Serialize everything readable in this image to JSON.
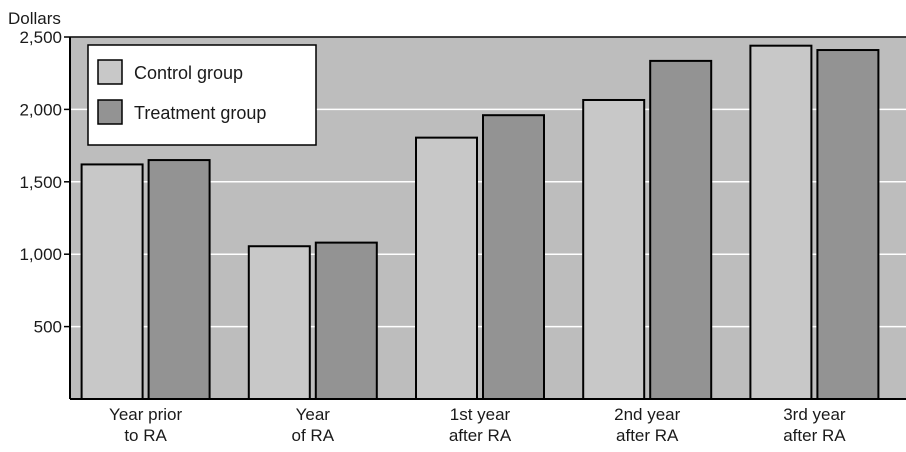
{
  "chart_data": {
    "type": "bar",
    "ylabel": "Dollars",
    "categories": [
      [
        "Year prior",
        "to RA"
      ],
      [
        "Year",
        "of RA"
      ],
      [
        "1st year",
        "after RA"
      ],
      [
        "2nd year",
        "after RA"
      ],
      [
        "3rd year",
        "after RA"
      ]
    ],
    "series": [
      {
        "name": "Control group",
        "values": [
          1620,
          1055,
          1805,
          2065,
          2440
        ]
      },
      {
        "name": "Treatment group",
        "values": [
          1650,
          1080,
          1960,
          2335,
          2410
        ]
      }
    ],
    "ylim": [
      0,
      2500
    ],
    "yticks": [
      500,
      1000,
      1500,
      2000,
      2500
    ],
    "ytick_labels": [
      "500",
      "1,000",
      "1,500",
      "2,000",
      "2,500"
    ],
    "grid": true,
    "legend_position": "top-left",
    "colors": {
      "plot_background": "#bdbdbd",
      "control": "#c8c8c8",
      "treatment": "#939393",
      "gridline": "#ffffff",
      "outline": "#000000"
    }
  }
}
